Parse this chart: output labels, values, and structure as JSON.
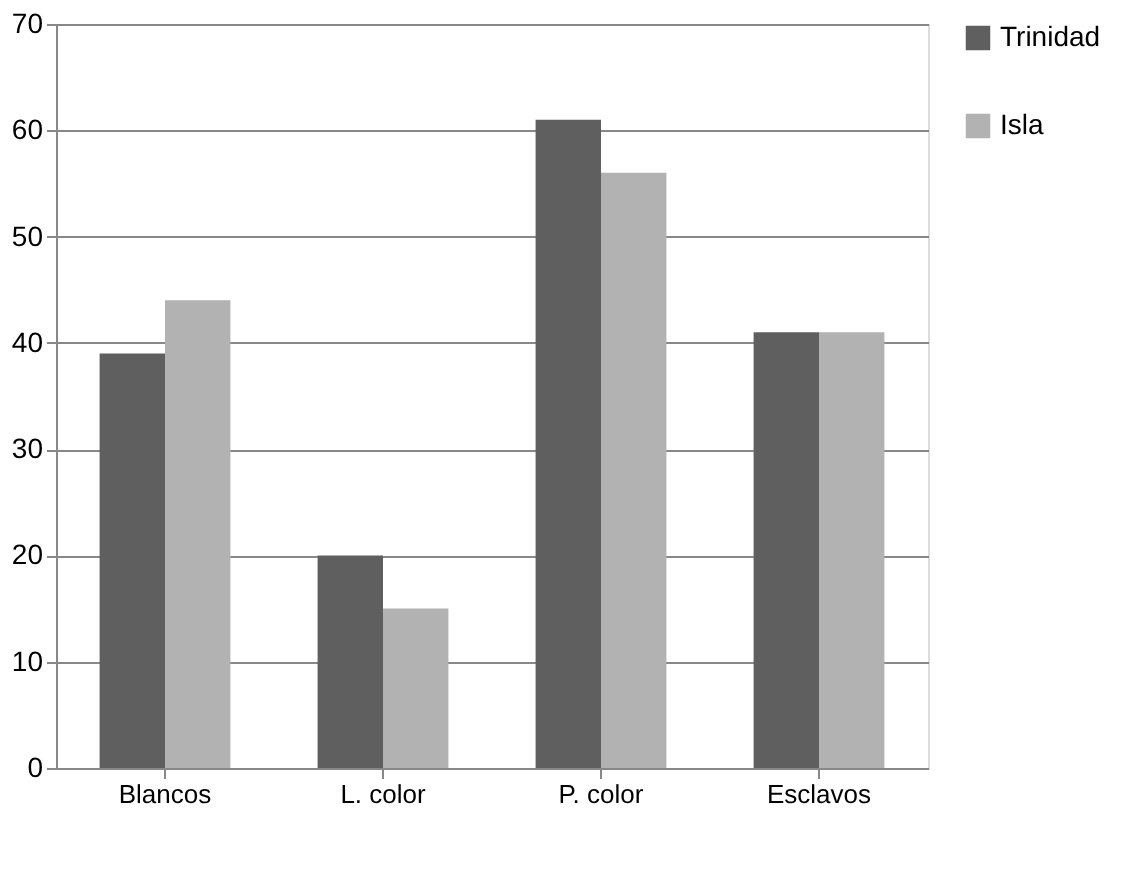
{
  "chart_data": {
    "type": "bar",
    "categories": [
      "Blancos",
      "L. color",
      "P. color",
      "Esclavos"
    ],
    "series": [
      {
        "name": "Trinidad",
        "color": "#5f5f5f",
        "values": [
          39,
          20,
          61,
          41
        ]
      },
      {
        "name": "Isla",
        "color": "#b2b2b2",
        "values": [
          44,
          15,
          56,
          41
        ]
      }
    ],
    "ylim": [
      0,
      70
    ],
    "yticks": [
      0,
      10,
      20,
      30,
      40,
      50,
      60,
      70
    ],
    "grid": "y",
    "legend": "right"
  }
}
